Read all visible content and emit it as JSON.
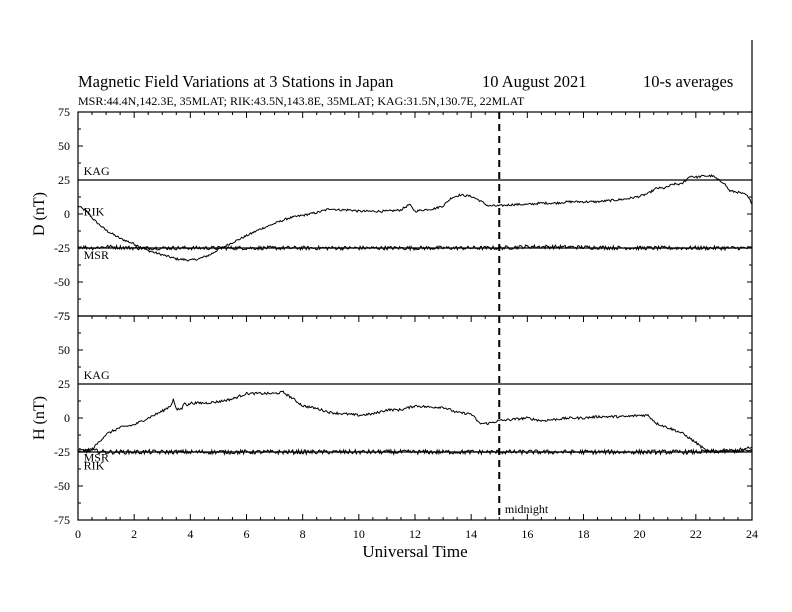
{
  "title": {
    "main": "Magnetic Field Variations at 3 Stations in Japan",
    "date": "10  August  2021",
    "averaging": "10-s averages",
    "stations": "MSR:44.4N,142.3E, 35MLAT;  RIK:43.5N,143.8E, 35MLAT;  KAG:31.5N,130.7E, 22MLAT"
  },
  "chart_data": [
    {
      "type": "line",
      "ylabel": "D (nT)",
      "xlabel": "",
      "xlim": [
        0,
        24
      ],
      "ylim": [
        -75,
        75
      ],
      "yticks": [
        75,
        50,
        25,
        0,
        -25,
        -50,
        -75
      ],
      "baselines": [
        {
          "name": "KAG",
          "y": 25
        },
        {
          "name": "MSR",
          "y": -25
        }
      ],
      "series": [
        {
          "name": "RIK",
          "noise": 0.8,
          "x": [
            0,
            0.3,
            0.6,
            1.0,
            1.5,
            2.0,
            2.5,
            3.0,
            3.5,
            4.0,
            4.3,
            4.7,
            5.0,
            5.5,
            6.0,
            6.5,
            7.0,
            7.5,
            8.0,
            8.5,
            9.0,
            9.3,
            9.7,
            10.0,
            10.5,
            11.0,
            11.5,
            11.8,
            12.0,
            12.3,
            12.7,
            13.0,
            13.3,
            13.6,
            14.0,
            14.3,
            14.6,
            15.0,
            15.5,
            16.0,
            16.5,
            17.0,
            17.5,
            18.0,
            18.5,
            19.0,
            19.5,
            20.0,
            20.3,
            20.6,
            20.9,
            21.2,
            21.5,
            21.8,
            22.0,
            22.3,
            22.6,
            22.8,
            23.0,
            23.2,
            23.5,
            23.8,
            24.0
          ],
          "y": [
            6,
            2,
            -5,
            -12,
            -18,
            -22,
            -27,
            -30,
            -33,
            -34,
            -33,
            -30,
            -26,
            -21,
            -16,
            -11,
            -7,
            -3,
            -1,
            1,
            4,
            3,
            3,
            2,
            2,
            2,
            3,
            7,
            2,
            3,
            4,
            6,
            12,
            14,
            13,
            10,
            6,
            6,
            7,
            7,
            8,
            8,
            9,
            9,
            9,
            10,
            11,
            13,
            15,
            19,
            19,
            22,
            22,
            28,
            27,
            28,
            28,
            25,
            23,
            17,
            16,
            14,
            8
          ]
        },
        {
          "name": "MSR",
          "noise": 1.4,
          "x": [
            0,
            0.5,
            1.0,
            2.0,
            4.0,
            8.0,
            12.0,
            15.0,
            16.0,
            20.0,
            22.0,
            24.0
          ],
          "y": [
            -24,
            -25,
            -24,
            -25,
            -25,
            -25,
            -25,
            -25,
            -24,
            -25,
            -25,
            -25
          ]
        }
      ],
      "annotations": [
        {
          "text": "KAG",
          "x": 0.2,
          "y": 28.5
        },
        {
          "text": "RIK",
          "x": 0.2,
          "y": -1
        },
        {
          "text": "MSR",
          "x": 0.2,
          "y": -33
        }
      ]
    },
    {
      "type": "line",
      "ylabel": "H (nT)",
      "xlabel": "Universal Time",
      "xlim": [
        0,
        24
      ],
      "ylim": [
        -75,
        75
      ],
      "xticks": [
        0,
        2,
        4,
        6,
        8,
        10,
        12,
        14,
        16,
        18,
        20,
        22,
        24
      ],
      "yticks": [
        75,
        50,
        25,
        0,
        -25,
        -50,
        -75
      ],
      "baselines": [
        {
          "name": "KAG",
          "y": 25
        },
        {
          "name": "RIK",
          "y": -25
        }
      ],
      "series": [
        {
          "name": "MSR",
          "noise": 0.9,
          "x": [
            0,
            0.5,
            1.0,
            1.5,
            2.0,
            2.5,
            3.0,
            3.3,
            3.4,
            3.5,
            3.7,
            3.8,
            3.9,
            4.0,
            4.5,
            5.0,
            5.5,
            6.0,
            6.5,
            7.0,
            7.3,
            7.6,
            8.0,
            8.5,
            9.0,
            9.5,
            10.0,
            10.5,
            11.0,
            11.5,
            12.0,
            12.5,
            13.0,
            13.5,
            14.0,
            14.3,
            14.6,
            15.0,
            15.5,
            16.0,
            16.5,
            17.0,
            17.5,
            18.0,
            18.5,
            19.0,
            19.5,
            20.0,
            20.3,
            20.6,
            21.0,
            21.5,
            22.0,
            22.3,
            22.5,
            22.7,
            23.0,
            23.5,
            24.0
          ],
          "y": [
            -25,
            -23,
            -12,
            -7,
            -5,
            0,
            5,
            9,
            14,
            6,
            7,
            12,
            9,
            11,
            11,
            12,
            14,
            18,
            18,
            18,
            19,
            15,
            9,
            7,
            4,
            3,
            2,
            3,
            6,
            6,
            9,
            8,
            8,
            4,
            3,
            -4,
            -4,
            -2,
            -1,
            0,
            -2,
            -1,
            0,
            0,
            1,
            1,
            1,
            2,
            2,
            -4,
            -7,
            -11,
            -18,
            -23,
            -25,
            -25,
            -24,
            -24,
            -24
          ]
        },
        {
          "name": "RIK",
          "noise": 1.6,
          "x": [
            0,
            0.5,
            1.0,
            2.0,
            4.0,
            8.0,
            12.0,
            16.0,
            20.0,
            22.0,
            23.5,
            24.0
          ],
          "y": [
            -24,
            -24,
            -25,
            -25,
            -25,
            -25,
            -25,
            -25,
            -25,
            -25,
            -24,
            -22
          ]
        }
      ],
      "annotations": [
        {
          "text": "KAG",
          "x": 0.2,
          "y": 28.5
        },
        {
          "text": "MSR",
          "x": 0.2,
          "y": -32
        },
        {
          "text": "RIK",
          "x": 0.2,
          "y": -38
        },
        {
          "text": "midnight",
          "x": 15.2,
          "y": -70
        }
      ]
    }
  ],
  "marker": {
    "x": 15,
    "label": "midnight",
    "style": "dashed"
  }
}
